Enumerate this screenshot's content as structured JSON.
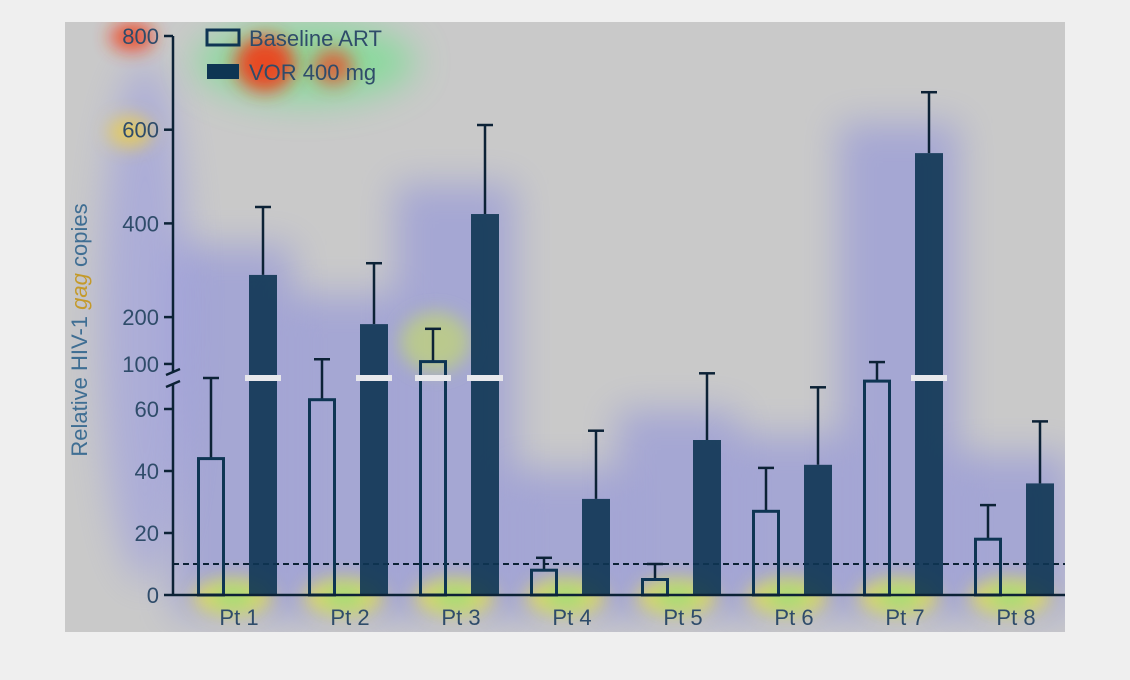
{
  "chart_data": {
    "type": "bar",
    "ylabel_prefix": "Relative HIV-1 ",
    "ylabel_italic": "gag",
    "ylabel_suffix": " copies",
    "categories": [
      "Pt 1",
      "Pt 2",
      "Pt 3",
      "Pt 4",
      "Pt 5",
      "Pt 6",
      "Pt 7",
      "Pt 8"
    ],
    "series": [
      {
        "name": "Baseline ART",
        "style": "open",
        "values": [
          44,
          63,
          105,
          8,
          5,
          27,
          69,
          18
        ],
        "error": [
          26,
          47,
          70,
          4,
          5,
          14,
          35,
          11
        ]
      },
      {
        "name": "VOR 400 mg",
        "style": "filled",
        "values": [
          290,
          185,
          420,
          31,
          50,
          42,
          550,
          36
        ],
        "error": [
          145,
          130,
          190,
          22,
          30,
          25,
          130,
          20
        ]
      }
    ],
    "axis_break": 70,
    "lower_ticks": [
      0,
      20,
      40,
      60
    ],
    "upper_ticks": [
      100,
      200,
      400,
      600,
      800
    ],
    "lower_range": [
      0,
      70
    ],
    "upper_range": [
      70,
      800
    ],
    "threshold_line": 10,
    "legend_position": "top-left",
    "colors": {
      "background": "#c9c9c9",
      "filled_bar": "#0e3553",
      "open_bar_edge": "#0e3553",
      "axis": "#0c2236"
    }
  }
}
